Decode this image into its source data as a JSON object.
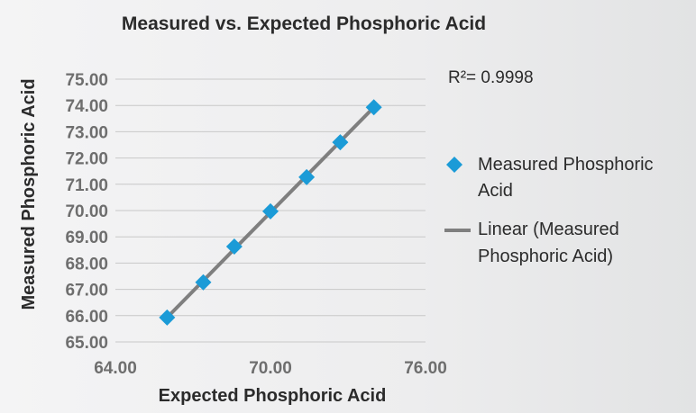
{
  "chart_data": {
    "type": "scatter",
    "title": "Measured vs. Expected Phosphoric Acid",
    "xlabel": "Expected Phosphoric Acid",
    "ylabel": "Measured Phosphoric Acid",
    "xlim": [
      64,
      76
    ],
    "ylim": [
      65,
      75
    ],
    "x_ticks": [
      "64.00",
      "70.00",
      "76.00"
    ],
    "y_ticks": [
      "75.00",
      "74.00",
      "73.00",
      "72.00",
      "71.00",
      "70.00",
      "69.00",
      "68.00",
      "67.00",
      "66.00",
      "65.00"
    ],
    "grid": true,
    "series": [
      {
        "name": "Measured Phosphoric Acid",
        "marker": "diamond",
        "color": "#1b9bd7",
        "points": [
          {
            "x": 66.0,
            "y": 65.93
          },
          {
            "x": 67.4,
            "y": 67.27
          },
          {
            "x": 68.6,
            "y": 68.63
          },
          {
            "x": 70.0,
            "y": 69.97
          },
          {
            "x": 71.4,
            "y": 71.27
          },
          {
            "x": 72.7,
            "y": 72.6
          },
          {
            "x": 74.0,
            "y": 73.93
          }
        ]
      }
    ],
    "trendline": {
      "name": "Linear (Measured Phosphoric Acid)",
      "color": "#7f7f7f",
      "from": {
        "x": 66.0,
        "y": 65.93
      },
      "to": {
        "x": 74.0,
        "y": 73.93
      }
    },
    "annotation": "R²= 0.9998",
    "legend": {
      "position": "right",
      "items": [
        {
          "lines": [
            "Measured Phosphoric",
            "Acid"
          ],
          "symbol": "diamond"
        },
        {
          "lines": [
            "Linear (Measured",
            "Phosphoric Acid)"
          ],
          "symbol": "line"
        }
      ]
    }
  }
}
